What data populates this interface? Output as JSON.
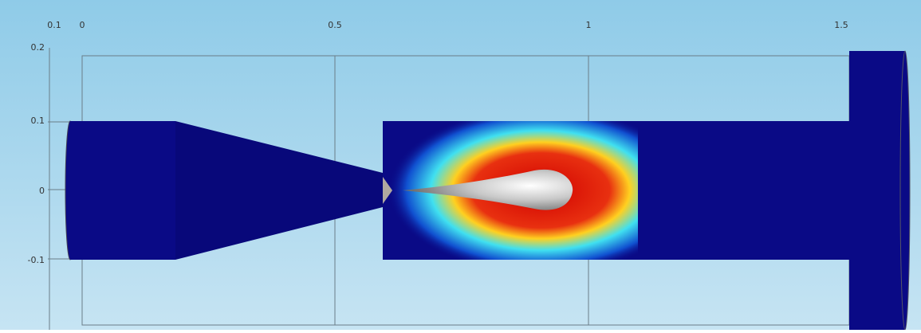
{
  "view": {
    "x_axis_labels": [
      "0.1",
      "0",
      "0.5",
      "1",
      "1.5"
    ],
    "y_axis_labels": [
      "0.2",
      "0.1",
      "0",
      "-0.1"
    ]
  }
}
